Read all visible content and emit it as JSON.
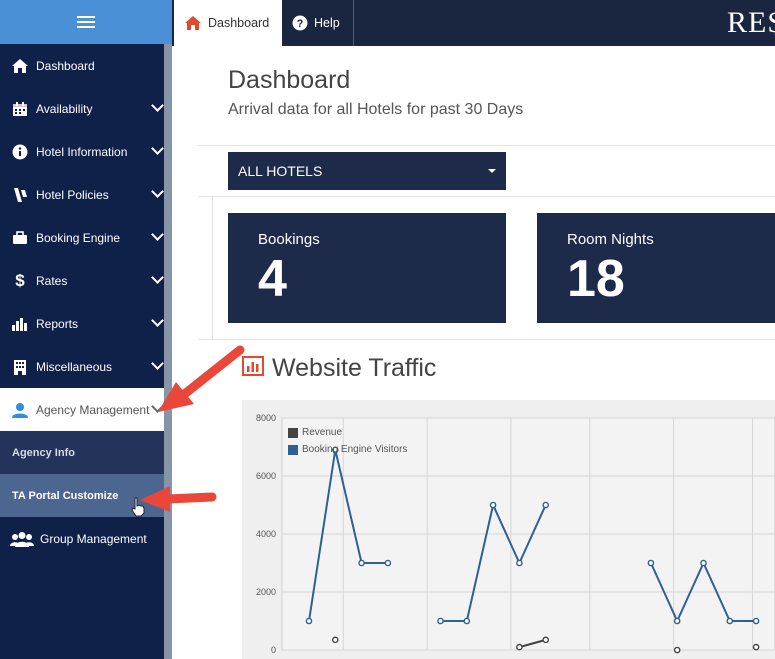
{
  "sidebar": {
    "items": [
      {
        "label": "Dashboard",
        "icon": "home-icon",
        "chevron": false
      },
      {
        "label": "Availability",
        "icon": "calendar-icon",
        "chevron": true
      },
      {
        "label": "Hotel Information",
        "icon": "info-icon",
        "chevron": true
      },
      {
        "label": "Hotel Policies",
        "icon": "policy-icon",
        "chevron": true
      },
      {
        "label": "Booking Engine",
        "icon": "briefcase-icon",
        "chevron": true
      },
      {
        "label": "Rates",
        "icon": "dollar-icon",
        "chevron": true
      },
      {
        "label": "Reports",
        "icon": "bar-chart-icon",
        "chevron": true
      },
      {
        "label": "Miscellaneous",
        "icon": "building-icon",
        "chevron": true
      },
      {
        "label": "Agency Management",
        "icon": "user-icon",
        "chevron": true
      }
    ],
    "sub_items": [
      {
        "label": "Agency Info"
      },
      {
        "label": "TA Portal Customize"
      }
    ],
    "group_item": {
      "label": "Group Management",
      "icon": "group-icon"
    }
  },
  "topbar": {
    "tabs": [
      {
        "label": "Dashboard",
        "icon": "home-icon"
      },
      {
        "label": "Help",
        "icon": "question-icon"
      }
    ],
    "brand": "RES"
  },
  "main": {
    "title": "Dashboard",
    "subtitle": "Arrival data for all Hotels for past 30 Days",
    "hotel_select": {
      "value": "ALL HOTELS"
    },
    "stats": [
      {
        "label": "Bookings",
        "value": "4"
      },
      {
        "label": "Room Nights",
        "value": "18"
      }
    ],
    "traffic_title": "Website Traffic"
  },
  "colors": {
    "sidebar_bg": "#0f2149",
    "accent_blue": "#4a90d6",
    "stat_bg": "#1d2a4a",
    "arrow": "#e9473a",
    "series_visitors": "#2e5f95",
    "series_revenue": "#444444"
  },
  "chart_data": {
    "type": "line",
    "y_ticks": [
      "0",
      "2000",
      "4000",
      "6000",
      "8000"
    ],
    "ylim": [
      0,
      8000
    ],
    "grid": true,
    "legend_position": "top-left",
    "series": [
      {
        "name": "Revenue",
        "values": [
          null,
          350,
          null,
          null,
          null,
          null,
          null,
          null,
          100,
          350,
          null,
          null,
          null,
          null,
          0,
          null,
          null,
          100
        ]
      },
      {
        "name": "Booking Engine Visitors",
        "values": [
          1000,
          6900,
          3000,
          3000,
          null,
          1000,
          1000,
          5000,
          3000,
          5000,
          null,
          null,
          null,
          3000,
          1000,
          3000,
          1000,
          1000
        ]
      }
    ]
  }
}
